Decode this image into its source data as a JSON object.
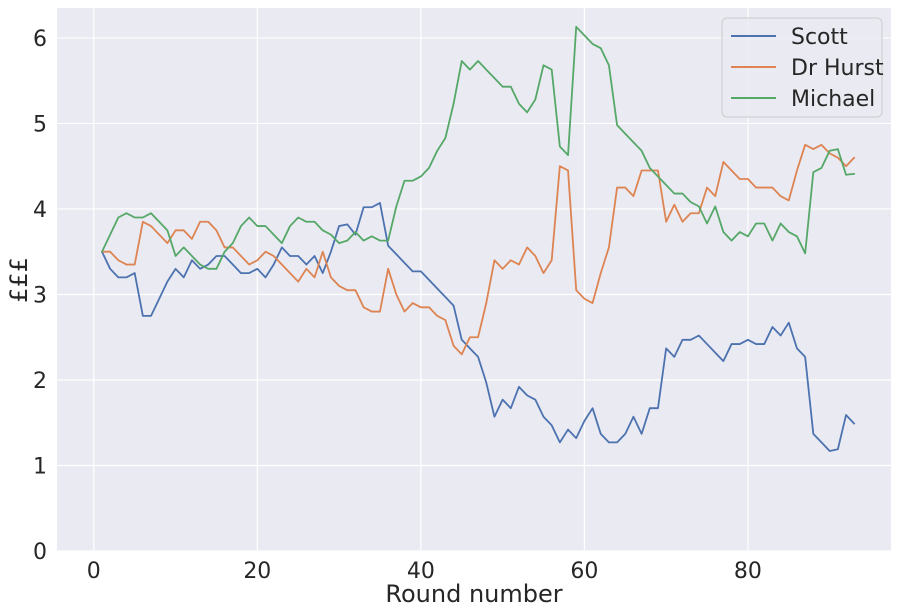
{
  "chart_data": {
    "type": "line",
    "title": "",
    "xlabel": "Round number",
    "ylabel": "£££",
    "xlim": [
      -4.5,
      97.5
    ],
    "ylim": [
      0,
      6.35
    ],
    "xticks": [
      0,
      20,
      40,
      60,
      80
    ],
    "yticks": [
      0,
      1,
      2,
      3,
      4,
      5,
      6
    ],
    "grid": true,
    "legend_position": "top-right",
    "x": [
      1,
      2,
      3,
      4,
      5,
      6,
      7,
      8,
      9,
      10,
      11,
      12,
      13,
      14,
      15,
      16,
      17,
      18,
      19,
      20,
      21,
      22,
      23,
      24,
      25,
      26,
      27,
      28,
      29,
      30,
      31,
      32,
      33,
      34,
      35,
      36,
      37,
      38,
      39,
      40,
      41,
      42,
      43,
      44,
      45,
      46,
      47,
      48,
      49,
      50,
      51,
      52,
      53,
      54,
      55,
      56,
      57,
      58,
      59,
      60,
      61,
      62,
      63,
      64,
      65,
      66,
      67,
      68,
      69,
      70,
      71,
      72,
      73,
      74,
      75,
      76,
      77,
      78,
      79,
      80,
      81,
      82,
      83,
      84,
      85,
      86,
      87,
      88,
      89,
      90,
      91,
      92,
      93
    ],
    "series": [
      {
        "name": "Scott",
        "color": "#4c72b0",
        "values": [
          3.5,
          3.3,
          3.2,
          3.2,
          3.25,
          2.75,
          2.75,
          2.95,
          3.15,
          3.3,
          3.2,
          3.4,
          3.3,
          3.35,
          3.45,
          3.45,
          3.35,
          3.25,
          3.25,
          3.3,
          3.2,
          3.35,
          3.55,
          3.45,
          3.45,
          3.35,
          3.45,
          3.25,
          3.5,
          3.8,
          3.82,
          3.7,
          4.02,
          4.02,
          4.07,
          3.57,
          3.47,
          3.37,
          3.27,
          3.27,
          3.17,
          3.07,
          2.97,
          2.87,
          2.47,
          2.37,
          2.27,
          1.97,
          1.57,
          1.77,
          1.67,
          1.92,
          1.82,
          1.77,
          1.57,
          1.47,
          1.27,
          1.42,
          1.32,
          1.52,
          1.67,
          1.37,
          1.27,
          1.27,
          1.37,
          1.57,
          1.37,
          1.67,
          1.67,
          2.37,
          2.27,
          2.47,
          2.47,
          2.52,
          2.42,
          2.32,
          2.22,
          2.42,
          2.42,
          2.47,
          2.42,
          2.42,
          2.62,
          2.52,
          2.67,
          2.37,
          2.27,
          1.37,
          1.27,
          1.17,
          1.19,
          1.59,
          1.49
        ]
      },
      {
        "name": "Dr Hurst",
        "color": "#dd8452",
        "values": [
          3.5,
          3.5,
          3.4,
          3.35,
          3.35,
          3.85,
          3.8,
          3.7,
          3.6,
          3.75,
          3.75,
          3.65,
          3.85,
          3.85,
          3.75,
          3.55,
          3.55,
          3.45,
          3.35,
          3.4,
          3.5,
          3.45,
          3.35,
          3.25,
          3.15,
          3.3,
          3.2,
          3.5,
          3.2,
          3.1,
          3.05,
          3.05,
          2.85,
          2.8,
          2.8,
          3.3,
          3.0,
          2.8,
          2.9,
          2.85,
          2.85,
          2.75,
          2.7,
          2.4,
          2.3,
          2.5,
          2.5,
          2.9,
          3.4,
          3.3,
          3.4,
          3.35,
          3.55,
          3.45,
          3.25,
          3.4,
          4.5,
          4.45,
          3.05,
          2.95,
          2.9,
          3.25,
          3.55,
          4.25,
          4.25,
          4.15,
          4.45,
          4.45,
          4.45,
          3.85,
          4.05,
          3.85,
          3.95,
          3.95,
          4.25,
          4.15,
          4.55,
          4.45,
          4.35,
          4.35,
          4.25,
          4.25,
          4.25,
          4.15,
          4.1,
          4.45,
          4.75,
          4.7,
          4.75,
          4.65,
          4.6,
          4.5,
          4.6
        ]
      },
      {
        "name": "Michael",
        "color": "#55a868",
        "values": [
          3.5,
          3.7,
          3.9,
          3.95,
          3.9,
          3.9,
          3.95,
          3.85,
          3.75,
          3.45,
          3.55,
          3.45,
          3.35,
          3.3,
          3.3,
          3.5,
          3.6,
          3.8,
          3.9,
          3.8,
          3.8,
          3.7,
          3.6,
          3.8,
          3.9,
          3.85,
          3.85,
          3.75,
          3.7,
          3.6,
          3.63,
          3.73,
          3.63,
          3.68,
          3.63,
          3.63,
          4.03,
          4.33,
          4.33,
          4.38,
          4.48,
          4.68,
          4.83,
          5.23,
          5.73,
          5.63,
          5.73,
          5.63,
          5.53,
          5.43,
          5.43,
          5.23,
          5.13,
          5.28,
          5.68,
          5.63,
          4.73,
          4.63,
          6.13,
          6.03,
          5.93,
          5.88,
          5.68,
          4.98,
          4.88,
          4.78,
          4.68,
          4.48,
          4.38,
          4.28,
          4.18,
          4.18,
          4.08,
          4.03,
          3.83,
          4.03,
          3.73,
          3.63,
          3.73,
          3.68,
          3.83,
          3.83,
          3.63,
          3.83,
          3.73,
          3.68,
          3.48,
          4.43,
          4.48,
          4.68,
          4.7,
          4.4,
          4.41
        ]
      }
    ]
  }
}
